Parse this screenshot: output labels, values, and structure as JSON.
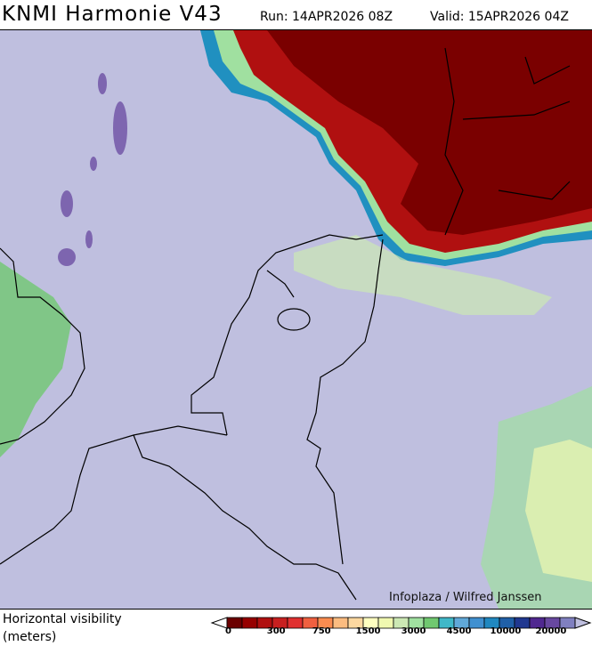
{
  "header": {
    "title": "KNMI Harmonie V43",
    "run": "Run: 14APR2026 08Z",
    "valid": "Valid: 15APR2026 04Z"
  },
  "map": {
    "credit": "Infoplaza / Wilfred Janssen",
    "background_color": "#bfbfdf",
    "fog_color": "#8b0000"
  },
  "legend": {
    "label_line1": "Horizontal visibility",
    "label_line2": "(meters)",
    "colors": [
      "#6b0000",
      "#960000",
      "#b01010",
      "#c82020",
      "#e03030",
      "#f06040",
      "#fa8c50",
      "#fcbc80",
      "#fdd8a0",
      "#ffffc0",
      "#f0f8b0",
      "#cce8b4",
      "#a0e0a0",
      "#70c870",
      "#40b8c8",
      "#60a8d8",
      "#4090d0",
      "#2088c0",
      "#2060a8",
      "#203890",
      "#502890",
      "#6848a0",
      "#8080c0"
    ],
    "under_color": "#ffffff",
    "over_color": "#bfbfdf",
    "ticks": [
      "0",
      "300",
      "750",
      "1500",
      "3000",
      "4500",
      "10000",
      "20000"
    ]
  }
}
